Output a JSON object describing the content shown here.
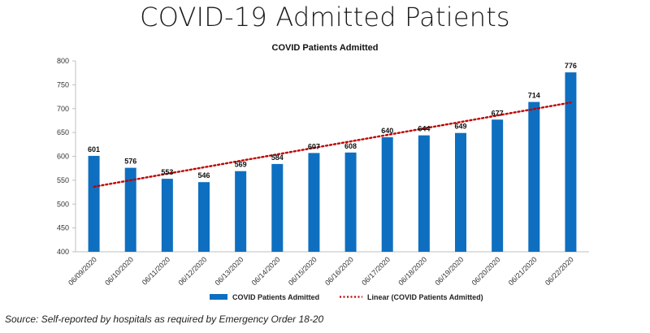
{
  "page": {
    "title": "COVID-19 Admitted Patients",
    "source": "Source: Self-reported by hospitals as required by Emergency Order 18-20"
  },
  "chart_data": {
    "type": "bar",
    "title": "COVID Patients Admitted",
    "categories": [
      "06/09/2020",
      "06/10/2020",
      "06/11/2020",
      "06/12/2020",
      "06/13/2020",
      "06/14/2020",
      "06/15/2020",
      "06/16/2020",
      "06/17/2020",
      "06/18/2020",
      "06/19/2020",
      "06/20/2020",
      "06/21/2020",
      "06/22/2020"
    ],
    "series": [
      {
        "name": "COVID Patients Admitted",
        "values": [
          601,
          576,
          553,
          546,
          569,
          584,
          607,
          608,
          640,
          644,
          649,
          677,
          714,
          776
        ],
        "color": "#0e6fc0"
      }
    ],
    "trendline": {
      "name": "Linear (COVID Patients Admitted)",
      "type": "linear",
      "color": "#c00000",
      "style": "dotted"
    },
    "ylim": [
      400,
      800
    ],
    "yticks": [
      400,
      450,
      500,
      550,
      600,
      650,
      700,
      750,
      800
    ],
    "grid": false,
    "legend": "bottom",
    "data_labels": true
  }
}
